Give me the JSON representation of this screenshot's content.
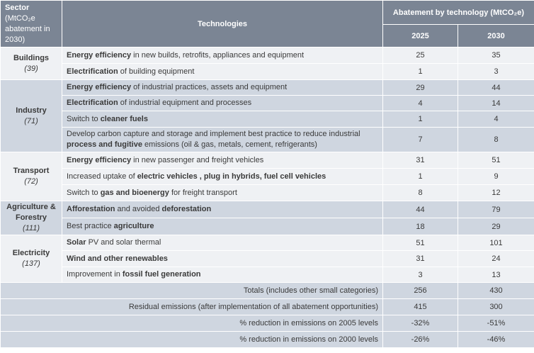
{
  "header": {
    "sector_label": "Sector",
    "sector_sub": "(MtCO₂e abatement in 2030)",
    "technologies": "Technologies",
    "abatement": "Abatement by technology (MtCO₂e)",
    "year1": "2025",
    "year2": "2030"
  },
  "sectors": [
    {
      "name": "Buildings",
      "total": "(39)",
      "rows": [
        {
          "bold": "Energy efficiency",
          "rest": " in new builds, retrofits, appliances and equipment",
          "v2025": "25",
          "v2030": "35"
        },
        {
          "bold": "Electrification",
          "rest": " of building equipment",
          "v2025": "1",
          "v2030": "3"
        }
      ]
    },
    {
      "name": "Industry",
      "total": "(71)",
      "rows": [
        {
          "bold": "Energy efficiency",
          "rest": " of industrial practices, assets and equipment",
          "v2025": "29",
          "v2030": "44"
        },
        {
          "bold": "Electrification",
          "rest": " of industrial equipment and processes",
          "v2025": "4",
          "v2030": "14"
        },
        {
          "pre": "Switch to ",
          "bold": "cleaner fuels",
          "rest": "",
          "v2025": "1",
          "v2030": "4"
        },
        {
          "pre": "Develop carbon capture and storage and implement best practice to reduce industrial ",
          "bold": "process and fugitive",
          "rest": " emissions (oil & gas, metals, cement, refrigerants)",
          "v2025": "7",
          "v2030": "8"
        }
      ]
    },
    {
      "name": "Transport",
      "total": "(72)",
      "rows": [
        {
          "bold": "Energy efficiency",
          "rest": " in new passenger and freight vehicles",
          "v2025": "31",
          "v2030": "51"
        },
        {
          "pre": "Increased uptake of ",
          "bold": "electric vehicles , plug in hybrids, fuel cell vehicles",
          "rest": "",
          "v2025": "1",
          "v2030": "9"
        },
        {
          "pre": "Switch to ",
          "bold": "gas and bioenergy",
          "rest": " for freight transport",
          "v2025": "8",
          "v2030": "12"
        }
      ]
    },
    {
      "name": "Agriculture & Forestry",
      "total": "(111)",
      "rows": [
        {
          "bold": "Afforestation",
          "rest": " and avoided ",
          "bold2": "deforestation",
          "v2025": "44",
          "v2030": "79"
        },
        {
          "pre": "Best practice ",
          "bold": "agriculture",
          "rest": "",
          "v2025": "18",
          "v2030": "29"
        }
      ]
    },
    {
      "name": "Electricity",
      "total": "(137)",
      "rows": [
        {
          "bold": "Solar",
          "rest": " PV and solar thermal",
          "v2025": "51",
          "v2030": "101"
        },
        {
          "bold": "Wind and other renewables",
          "rest": "",
          "v2025": "31",
          "v2030": "24"
        },
        {
          "pre": "Improvement in ",
          "bold": "fossil fuel generation",
          "rest": "",
          "v2025": "3",
          "v2030": "13"
        }
      ]
    }
  ],
  "totals": [
    {
      "label": "Totals (includes other small categories)",
      "v2025": "256",
      "v2030": "430"
    },
    {
      "label": "Residual emissions (after implementation of all abatement opportunities)",
      "v2025": "415",
      "v2030": "300"
    },
    {
      "label": "% reduction in emissions on 2005 levels",
      "v2025": "-32%",
      "v2030": "-51%"
    },
    {
      "label": "% reduction in emissions on 2000 levels",
      "v2025": "-26%",
      "v2030": "-46%"
    }
  ]
}
